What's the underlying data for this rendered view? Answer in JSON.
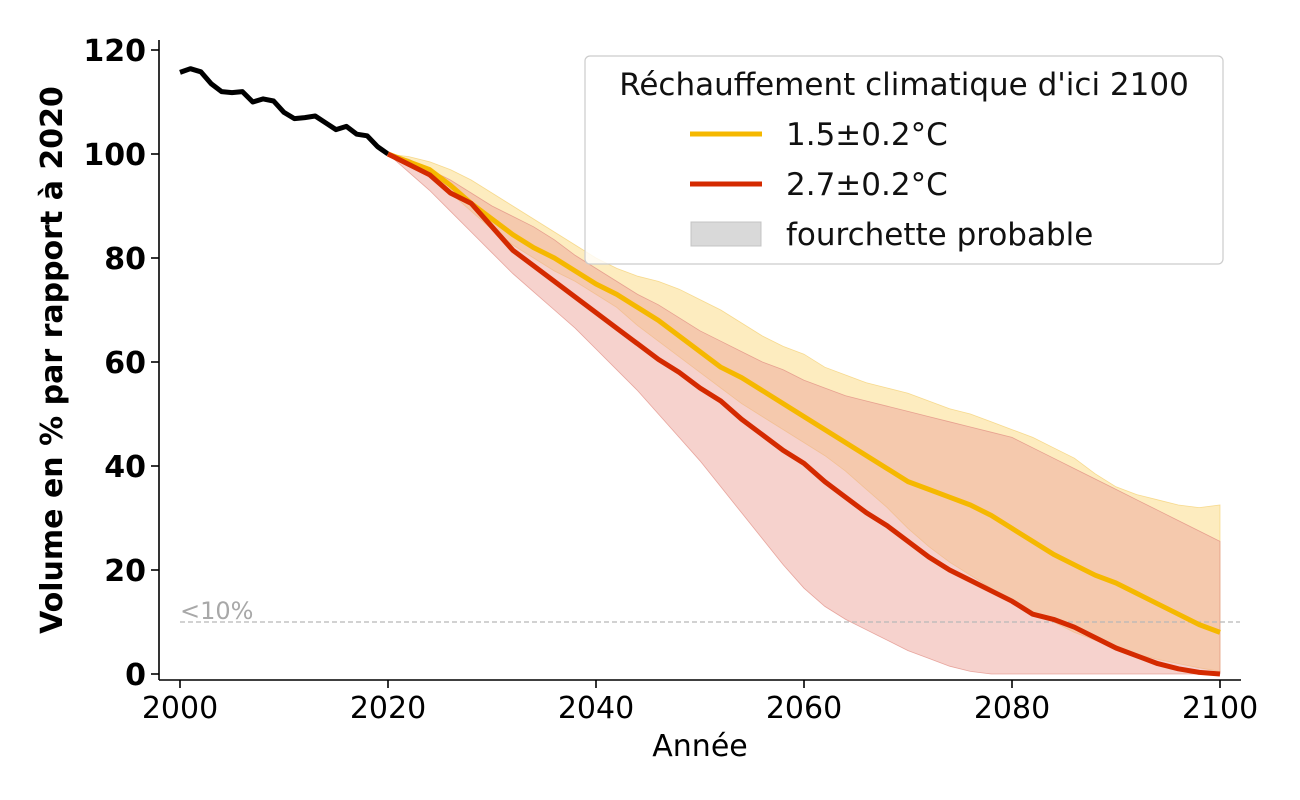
{
  "chart_data": {
    "type": "line",
    "xlabel": "Année",
    "ylabel": "Volume en % par rapport à 2020",
    "xlim": [
      2000,
      2100
    ],
    "ylim": [
      0,
      120
    ],
    "x_ticks": [
      2000,
      2020,
      2040,
      2060,
      2080,
      2100
    ],
    "y_ticks": [
      0,
      20,
      40,
      60,
      80,
      100,
      120
    ],
    "x_tick_labels": [
      "2000",
      "2020",
      "2040",
      "2060",
      "2080",
      "2100"
    ],
    "y_tick_labels": [
      "0",
      "20",
      "40",
      "60",
      "80",
      "100",
      "120"
    ],
    "grid": false,
    "legend": {
      "title": "Réchauffement climatique d'ici 2100",
      "position": "top-right",
      "entries": [
        "1.5±0.2°C",
        "2.7±0.2°C",
        "fourchette probable"
      ]
    },
    "threshold": {
      "y": 10,
      "label": "<10%",
      "style": "dashed",
      "color": "#b8b8b8"
    },
    "colors": {
      "historical": "#000000",
      "low": "#f5b800",
      "high": "#d42a00",
      "band_low": "#fde9b4",
      "band_high": "#eda59c",
      "legend_band": "#d9d9d9"
    },
    "historical": {
      "x": [
        2000,
        2001,
        2002,
        2003,
        2004,
        2005,
        2006,
        2007,
        2008,
        2009,
        2010,
        2011,
        2012,
        2013,
        2014,
        2015,
        2016,
        2017,
        2018,
        2019,
        2020
      ],
      "y": [
        115.7,
        116.4,
        115.8,
        113.5,
        112.0,
        111.8,
        112.0,
        110.0,
        110.6,
        110.2,
        108.0,
        106.8,
        107.0,
        107.3,
        106.0,
        104.7,
        105.3,
        103.8,
        103.5,
        101.4,
        100.0
      ]
    },
    "series": [
      {
        "name": "1.5±0.2°C",
        "x": [
          2020,
          2022,
          2024,
          2026,
          2028,
          2030,
          2032,
          2034,
          2036,
          2038,
          2040,
          2042,
          2044,
          2046,
          2048,
          2050,
          2052,
          2054,
          2056,
          2058,
          2060,
          2062,
          2064,
          2066,
          2068,
          2070,
          2072,
          2074,
          2076,
          2078,
          2080,
          2082,
          2084,
          2086,
          2088,
          2090,
          2092,
          2094,
          2096,
          2098,
          2100
        ],
        "y": [
          100,
          98.5,
          97,
          94,
          90.5,
          87.5,
          84.5,
          82,
          80,
          77.5,
          75,
          73,
          70.5,
          68,
          65,
          62,
          59,
          57,
          54.5,
          52,
          49.5,
          47,
          44.5,
          42,
          39.5,
          37,
          35.5,
          34,
          32.5,
          30.5,
          28,
          25.5,
          23,
          21,
          19,
          17.5,
          15.5,
          13.5,
          11.5,
          9.5,
          8
        ],
        "lower": [
          100,
          98,
          96,
          92.5,
          89,
          85.5,
          82.5,
          80,
          77.5,
          75.5,
          73,
          70.5,
          67,
          64,
          61,
          58,
          55,
          52,
          49.5,
          47,
          44.5,
          42,
          39,
          35.5,
          32,
          28,
          24.5,
          21.5,
          19,
          16.5,
          14,
          12,
          10,
          8,
          6.5,
          5,
          3.8,
          2.8,
          2,
          1.2,
          0.5
        ],
        "upper": [
          100,
          99.5,
          98.5,
          97,
          95,
          92.5,
          90,
          87.5,
          85,
          82.5,
          80,
          78,
          76.5,
          75.5,
          74,
          72,
          70,
          67.5,
          65,
          63,
          61.5,
          59,
          57.5,
          56,
          55,
          54,
          52.5,
          51,
          50,
          48.5,
          47,
          45.5,
          43.5,
          41.5,
          38.5,
          36,
          34.5,
          33.5,
          32.5,
          32,
          32.5
        ]
      },
      {
        "name": "2.7±0.2°C",
        "x": [
          2020,
          2022,
          2024,
          2026,
          2028,
          2030,
          2032,
          2034,
          2036,
          2038,
          2040,
          2042,
          2044,
          2046,
          2048,
          2050,
          2052,
          2054,
          2056,
          2058,
          2060,
          2062,
          2064,
          2066,
          2068,
          2070,
          2072,
          2074,
          2076,
          2078,
          2080,
          2082,
          2084,
          2086,
          2088,
          2090,
          2092,
          2094,
          2096,
          2098,
          2100
        ],
        "y": [
          100,
          98,
          96,
          92.5,
          90.5,
          86,
          81.5,
          78.5,
          75.5,
          72.5,
          69.5,
          66.5,
          63.5,
          60.5,
          58,
          55,
          52.5,
          49,
          46,
          43,
          40.5,
          37,
          34,
          31,
          28.5,
          25.5,
          22.5,
          20,
          18,
          16,
          14,
          11.5,
          10.5,
          9,
          7,
          5,
          3.5,
          2,
          1,
          0.3,
          0
        ],
        "lower": [
          100,
          96.5,
          93,
          89,
          85,
          81,
          77,
          73.5,
          70,
          66.5,
          62.5,
          58.5,
          54.5,
          50,
          45.5,
          41,
          36,
          31,
          26,
          21,
          16.5,
          13,
          10.5,
          8.5,
          6.5,
          4.5,
          3,
          1.5,
          0.5,
          0,
          0,
          0,
          0,
          0,
          0,
          0,
          0,
          0,
          0,
          0,
          0
        ],
        "upper": [
          100,
          99,
          97,
          95,
          92.5,
          90,
          88,
          86,
          83.5,
          80.5,
          78,
          75.5,
          73,
          71,
          68.5,
          66,
          64,
          62,
          60,
          58.5,
          56.5,
          55,
          53.5,
          52.5,
          51.5,
          50.5,
          49.5,
          48.5,
          47.5,
          46.5,
          45.5,
          43.5,
          41.5,
          39.5,
          37.5,
          35.5,
          33.5,
          31.5,
          29.5,
          27.5,
          25.5
        ]
      }
    ]
  }
}
